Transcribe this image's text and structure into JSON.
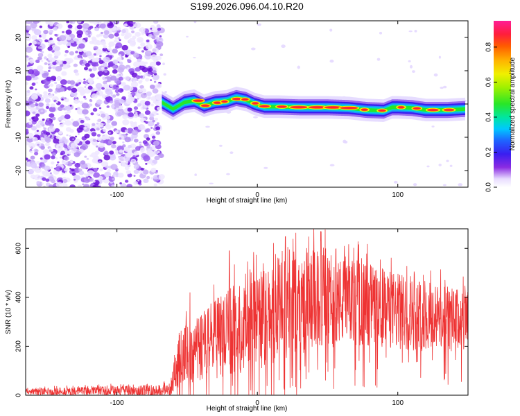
{
  "title": "S199.2026.096.04.10.R20",
  "chart_data": [
    {
      "type": "heatmap",
      "name": "spectrogram",
      "xlabel": "Height of straight line (km)",
      "ylabel": "Frequency (Hz)",
      "xlim": [
        -165,
        150
      ],
      "ylim": [
        -25,
        25
      ],
      "xticks": [
        -100,
        0,
        100
      ],
      "yticks": [
        -20,
        -10,
        0,
        10,
        20
      ],
      "noise_region_x": [
        -165,
        -68
      ],
      "ridge": {
        "x": [
          -68,
          -60,
          -52,
          -45,
          -38,
          -30,
          -22,
          -15,
          -8,
          -2,
          5,
          15,
          30,
          50,
          65,
          78,
          90,
          96,
          100,
          110,
          120,
          135,
          148
        ],
        "freq": [
          0.5,
          -1.5,
          0.5,
          1.0,
          -0.5,
          0.5,
          0.8,
          1.8,
          1.2,
          0.0,
          -0.8,
          -0.8,
          -1.0,
          -1.0,
          -1.2,
          -1.8,
          -2.0,
          -1.0,
          -1.0,
          -1.2,
          -1.8,
          -1.8,
          -1.5
        ]
      },
      "colorbar": {
        "label": "Normalized spectral amplitude",
        "ticks": [
          0.0,
          0.2,
          0.4,
          0.6,
          0.8
        ],
        "range": [
          0,
          0.95
        ]
      }
    },
    {
      "type": "line",
      "name": "snr",
      "xlabel": "Height of straight line (km)",
      "ylabel": "SNR (10 * v/v)",
      "xlim": [
        -165,
        150
      ],
      "ylim": [
        0,
        680
      ],
      "xticks": [
        -100,
        0,
        100
      ],
      "yticks": [
        0,
        200,
        400,
        600
      ],
      "color": "#ee3333",
      "segments": [
        {
          "x": -165,
          "base": 15,
          "amp": 12
        },
        {
          "x": -62,
          "base": 20,
          "amp": 25
        },
        {
          "x": -55,
          "base": 150,
          "amp": 120
        },
        {
          "x": -40,
          "base": 200,
          "amp": 150
        },
        {
          "x": -20,
          "base": 260,
          "amp": 180
        },
        {
          "x": 0,
          "base": 300,
          "amp": 200
        },
        {
          "x": 20,
          "base": 350,
          "amp": 200
        },
        {
          "x": 40,
          "base": 390,
          "amp": 210
        },
        {
          "x": 60,
          "base": 380,
          "amp": 180
        },
        {
          "x": 80,
          "base": 370,
          "amp": 170
        },
        {
          "x": 100,
          "base": 340,
          "amp": 160
        },
        {
          "x": 120,
          "base": 320,
          "amp": 140
        },
        {
          "x": 150,
          "base": 300,
          "amp": 130
        }
      ],
      "peaks": [
        {
          "x": -48,
          "y": 420
        },
        {
          "x": -20,
          "y": 590
        },
        {
          "x": 27,
          "y": 555
        },
        {
          "x": 45,
          "y": 670
        },
        {
          "x": 62,
          "y": 610
        }
      ]
    }
  ]
}
